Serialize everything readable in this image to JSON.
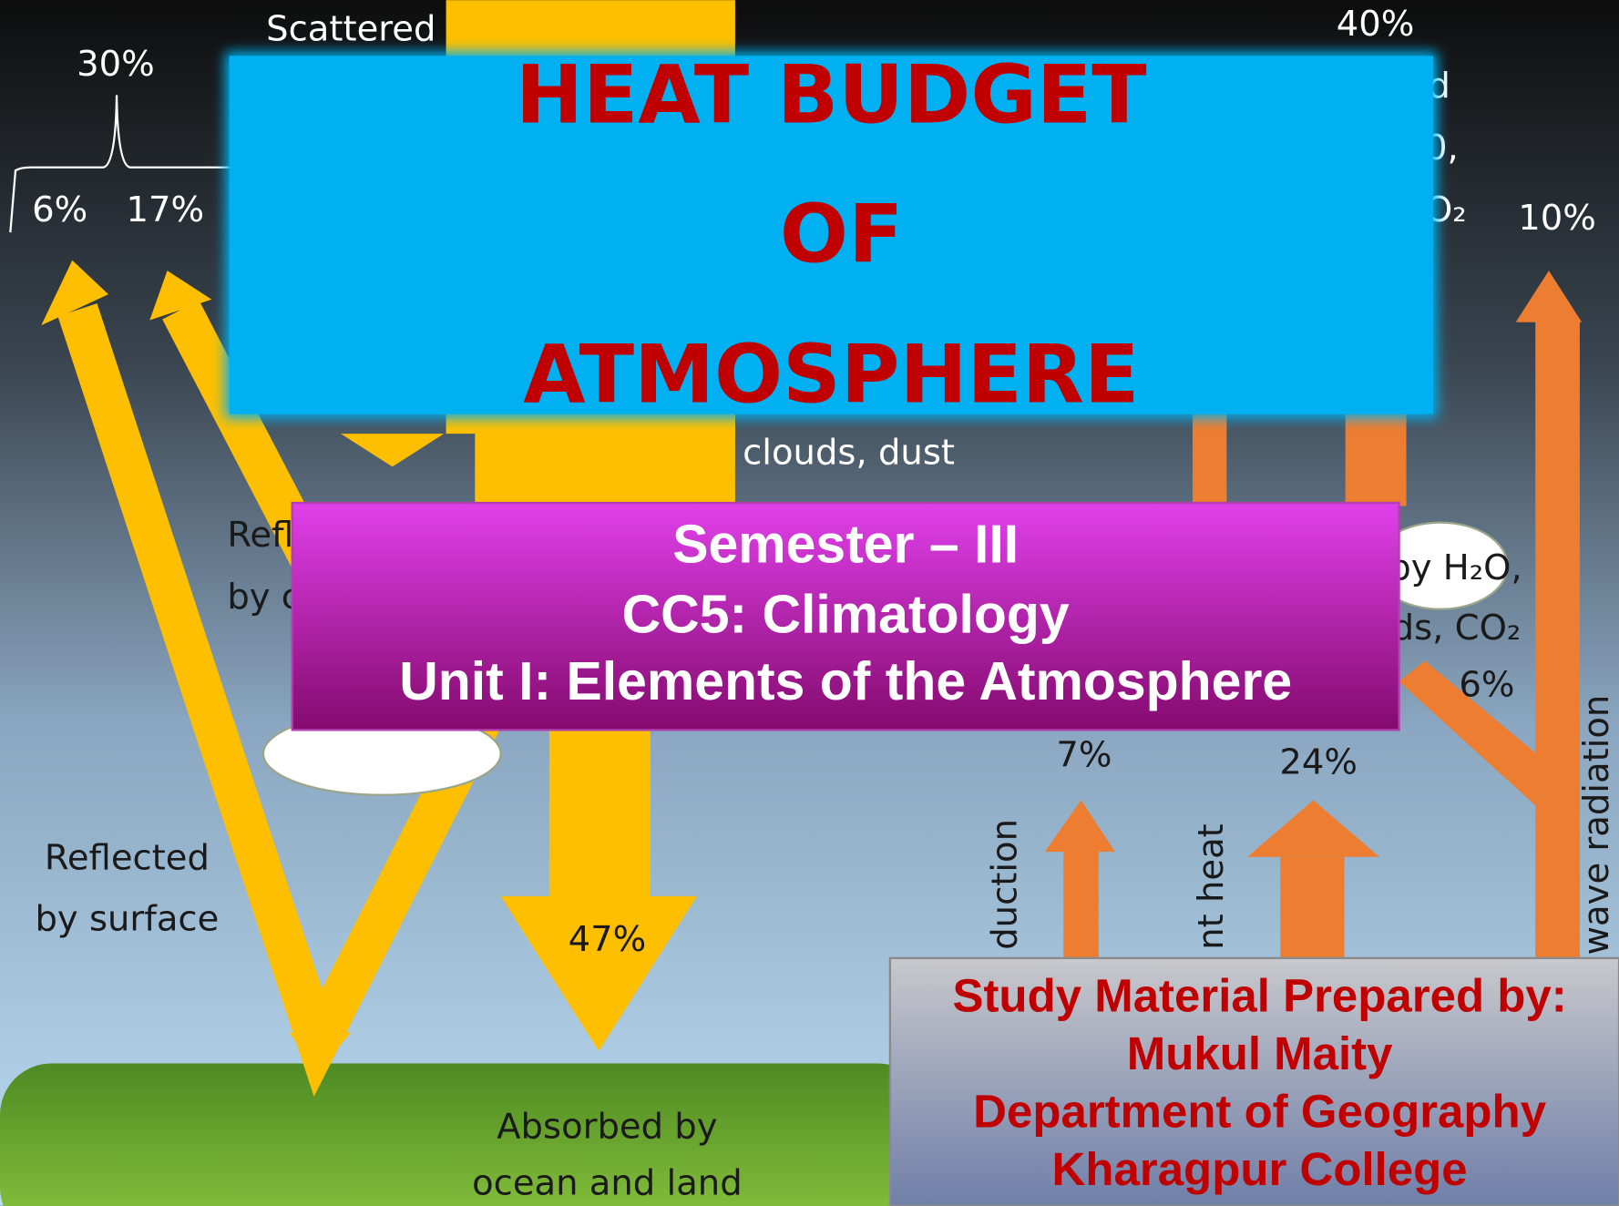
{
  "slide": {
    "title": [
      "HEAT BUDGET",
      "OF",
      "ATMOSPHERE"
    ],
    "course": [
      "Semester – III",
      "CC5: Climatology",
      "Unit I: Elements of the Atmosphere"
    ],
    "author": [
      "Study Material Prepared by:",
      "Mukul Maity",
      "Department of Geography",
      "Kharagpur College"
    ],
    "diagram_labels": [
      "Scattered",
      "30%",
      "6%",
      "17%",
      "40%",
      "d",
      "0,",
      "O₂",
      "10%",
      "clouds, dust",
      "Refl",
      "by c",
      "by H₂O,",
      "ds, CO₂",
      "6%",
      "7%",
      "24%",
      "Reflected",
      "by surface",
      "47%",
      "Absorbed by",
      "ocean and land",
      "duction",
      "nt heat",
      "wave radiation"
    ]
  }
}
